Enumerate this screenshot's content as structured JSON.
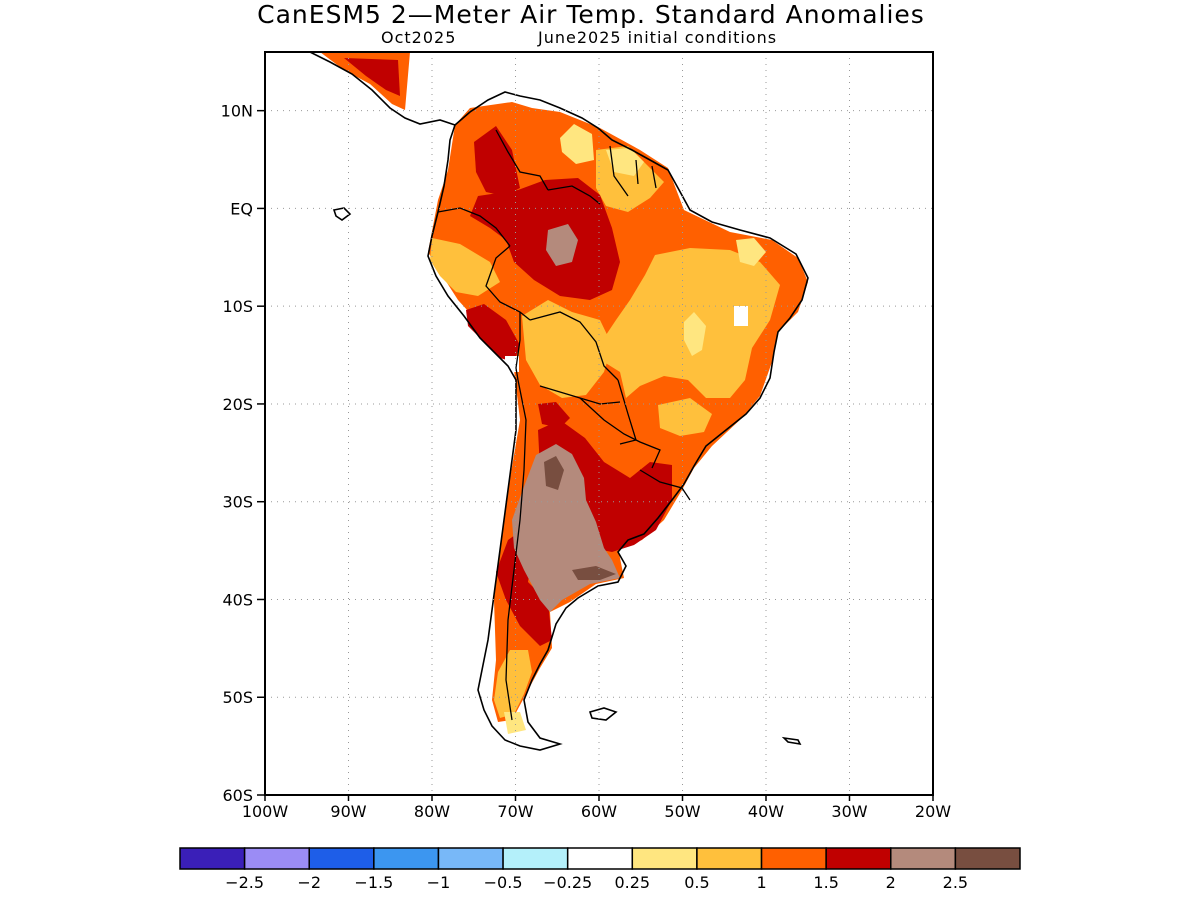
{
  "title": "CanESM5 2—Meter Air Temp. Standard Anomalies",
  "subtitle_left": "Oct2025",
  "subtitle_right": "June2025 initial conditions",
  "map": {
    "lon_range": [
      -100,
      -20
    ],
    "lat_range": [
      -60,
      16
    ],
    "lat_ticks": [
      {
        "value": 10,
        "label": "10N"
      },
      {
        "value": 0,
        "label": "EQ"
      },
      {
        "value": -10,
        "label": "10S"
      },
      {
        "value": -20,
        "label": "20S"
      },
      {
        "value": -30,
        "label": "30S"
      },
      {
        "value": -40,
        "label": "40S"
      },
      {
        "value": -50,
        "label": "50S"
      },
      {
        "value": -60,
        "label": "60S"
      }
    ],
    "lon_ticks": [
      {
        "value": -100,
        "label": "100W"
      },
      {
        "value": -90,
        "label": "90W"
      },
      {
        "value": -80,
        "label": "80W"
      },
      {
        "value": -70,
        "label": "70W"
      },
      {
        "value": -60,
        "label": "60W"
      },
      {
        "value": -50,
        "label": "50W"
      },
      {
        "value": -40,
        "label": "40W"
      },
      {
        "value": -30,
        "label": "30W"
      },
      {
        "value": -20,
        "label": "20W"
      }
    ],
    "grid": true
  },
  "colors": {
    "a05_1": "#ffe680",
    "a1_15": "#ffc03c",
    "a15_2": "#ff6000",
    "a2_25": "#c00000",
    "a25_3": "#b48a7c",
    "a3p": "#784e40"
  },
  "colorbar": {
    "colors": [
      "#3a1fb8",
      "#9b8cf5",
      "#1e5ee8",
      "#3c96f0",
      "#78b8f8",
      "#b4f0fa",
      "#ffffff",
      "#ffe680",
      "#ffc03c",
      "#ff6000",
      "#c00000",
      "#b48a7c",
      "#784e40"
    ],
    "labels": [
      "−2.5",
      "−2",
      "−1.5",
      "−1",
      "−0.5",
      "−0.25",
      "0.25",
      "0.5",
      "1",
      "1.5",
      "2",
      "2.5"
    ]
  }
}
